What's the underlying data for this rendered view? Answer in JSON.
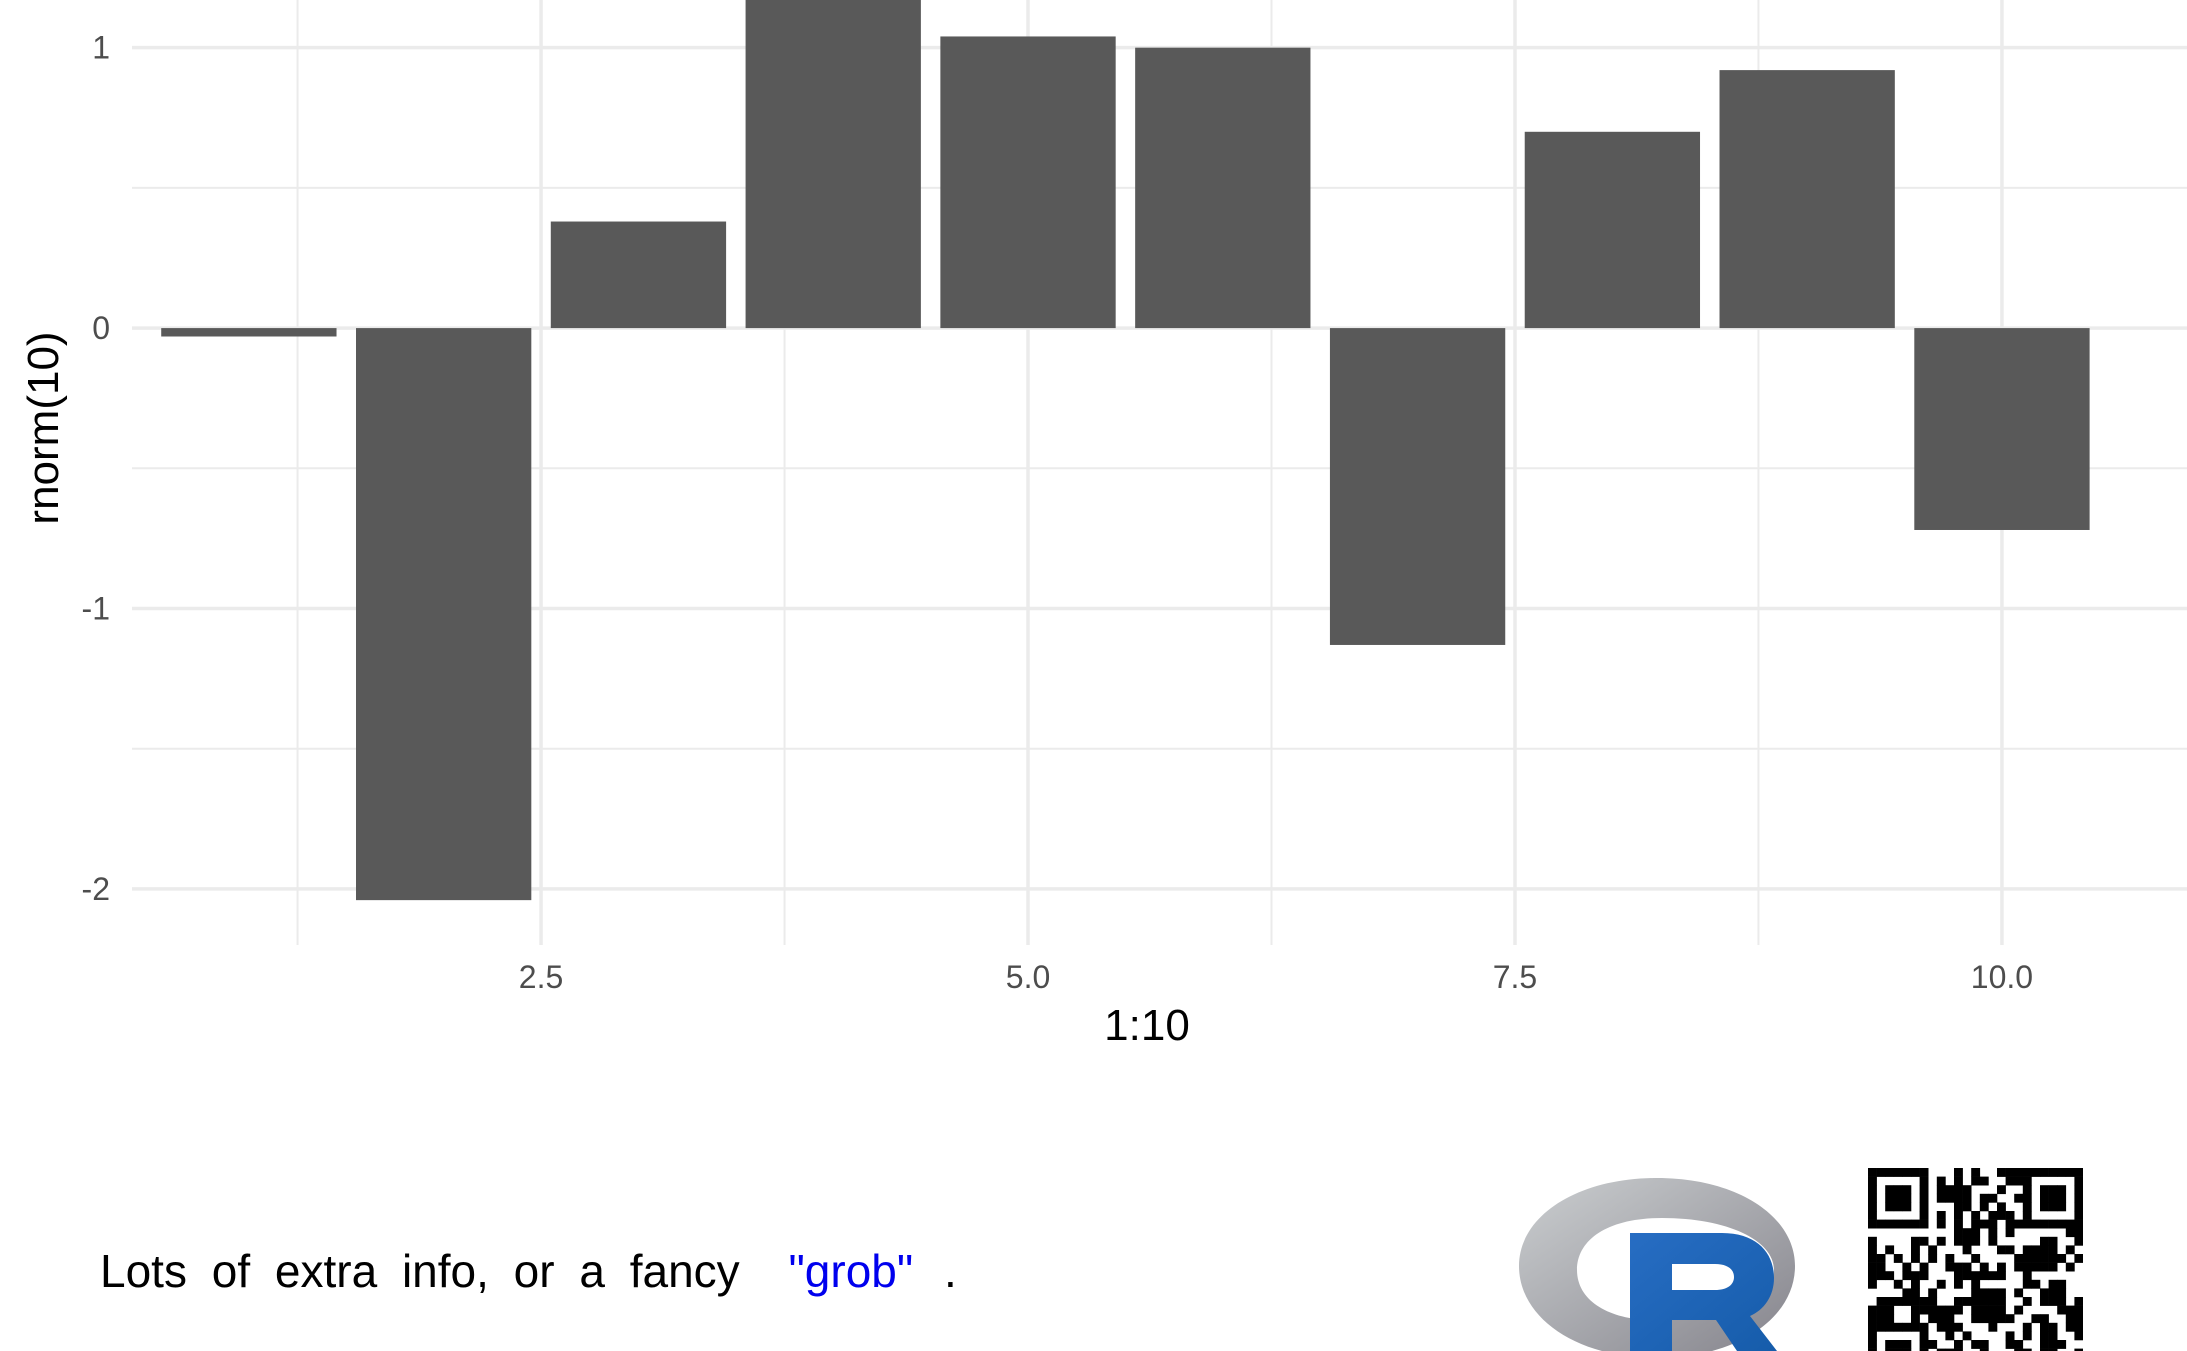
{
  "chart_data": {
    "type": "bar",
    "x": [
      1,
      2,
      3,
      4,
      5,
      6,
      7,
      8,
      9,
      10
    ],
    "values": [
      -0.03,
      -2.04,
      0.38,
      1.22,
      1.04,
      1.0,
      -1.13,
      0.7,
      0.92,
      -0.72
    ],
    "xlabel": "1:10",
    "ylabel": "rnorm(10)",
    "xlim": [
      0.4,
      10.95
    ],
    "ylim": [
      -2.2,
      1.17
    ],
    "xticks": [
      2.5,
      5.0,
      7.5,
      10.0
    ],
    "xtick_labels": [
      "2.5",
      "5.0",
      "7.5",
      "10.0"
    ],
    "yticks": [
      -2,
      -1,
      0,
      1
    ],
    "ytick_labels": [
      "-2",
      "-1",
      "0",
      "1"
    ],
    "grid": true,
    "bar_color": "#595959",
    "grid_color": "#ebebeb"
  },
  "caption": {
    "words": [
      "Lots",
      "of",
      "extra",
      "info,",
      "or",
      "a",
      "fancy"
    ],
    "highlight": "\"grob\"",
    "highlight_color": "#0000ee",
    "end": "."
  },
  "logos": {
    "r_logo_icon": "r-logo-icon",
    "qr_icon": "qr-code-icon",
    "r_letter": "R"
  }
}
